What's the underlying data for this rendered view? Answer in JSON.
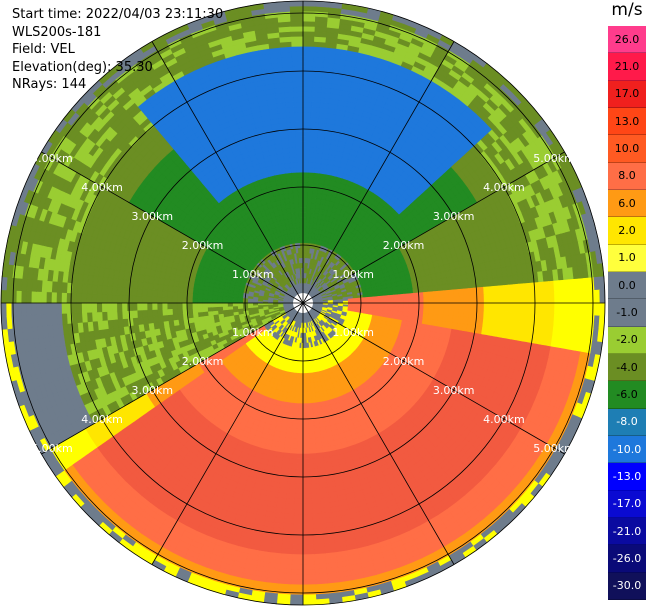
{
  "header": {
    "start_time": "Start time: 2022/04/03 23:11:30",
    "station": "WLS200s-181",
    "field": "Field: VEL",
    "elevation": "Elevation(deg): 35.30",
    "nrays": "NRays: 144"
  },
  "colorbar": {
    "unit": "m/s",
    "levels": [
      {
        "label": "26.0",
        "color": "#ff3c8c"
      },
      {
        "label": "21.0",
        "color": "#ff1a4a"
      },
      {
        "label": "17.0",
        "color": "#f0201e"
      },
      {
        "label": "13.0",
        "color": "#ff4616"
      },
      {
        "label": "10.0",
        "color": "#ff5a22"
      },
      {
        "label": "8.0",
        "color": "#ff6e46"
      },
      {
        "label": "6.0",
        "color": "#ff9a14"
      },
      {
        "label": "2.0",
        "color": "#ffe600"
      },
      {
        "label": "1.0",
        "color": "#ffff3c"
      },
      {
        "label": "0.0",
        "color": "#6e7c8c"
      },
      {
        "label": "-1.0",
        "color": "#6e7c8c"
      },
      {
        "label": "-2.0",
        "color": "#9acd32"
      },
      {
        "label": "-4.0",
        "color": "#6b8e23"
      },
      {
        "label": "-6.0",
        "color": "#228b22"
      },
      {
        "label": "-8.0",
        "color": "#1e7eb4"
      },
      {
        "label": "-10.0",
        "color": "#1e78dc"
      },
      {
        "label": "-13.0",
        "color": "#0000ff"
      },
      {
        "label": "-17.0",
        "color": "#0a0ad2"
      },
      {
        "label": "-21.0",
        "color": "#0a0aa0"
      },
      {
        "label": "-26.0",
        "color": "#0a0a78"
      },
      {
        "label": "-30.0",
        "color": "#10105a"
      }
    ]
  },
  "range_rings": [
    "1.00km",
    "2.00km",
    "3.00km",
    "4.00km",
    "5.00km"
  ],
  "colors": {
    "ring_line": "#000000",
    "ring_label": "#ffffff"
  }
}
